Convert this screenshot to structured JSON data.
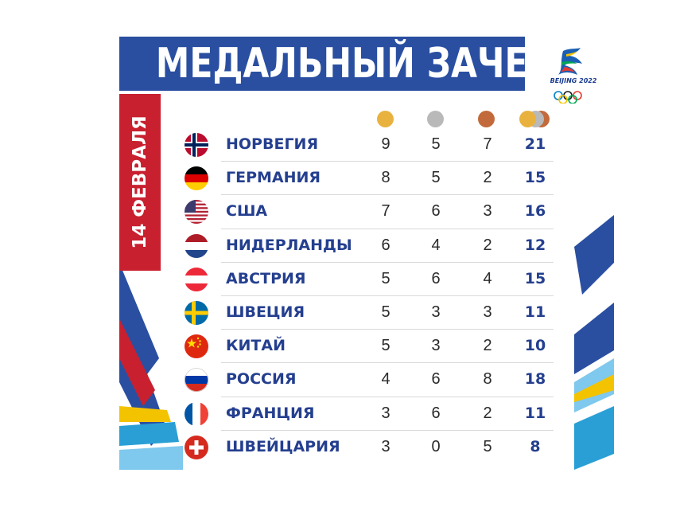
{
  "title": "МЕДАЛЬНЫЙ ЗАЧЕТ",
  "date": "14 ФЕВРАЛЯ",
  "logo": {
    "text": "BEIJING 2022",
    "colors": [
      "#1a5fb4",
      "#e83a2f",
      "#f4c300",
      "#00a651",
      "#0081c8"
    ]
  },
  "colors": {
    "gold": "#e9b23f",
    "silver": "#b9b9b9",
    "bronze": "#c26a3b",
    "title_bg": "#2a4fa1",
    "date_bg": "#c8202f",
    "text_blue": "#243f8f"
  },
  "medal_icons": [
    "gold-medal-icon",
    "silver-medal-icon",
    "bronze-medal-icon",
    "total-medals-icon"
  ],
  "rows": [
    {
      "flag": "norway-flag-icon",
      "country": "НОРВЕГИЯ",
      "gold": "9",
      "silver": "5",
      "bronze": "7",
      "total": "21"
    },
    {
      "flag": "germany-flag-icon",
      "country": "ГЕРМАНИЯ",
      "gold": "8",
      "silver": "5",
      "bronze": "2",
      "total": "15"
    },
    {
      "flag": "usa-flag-icon",
      "country": "США",
      "gold": "7",
      "silver": "6",
      "bronze": "3",
      "total": "16"
    },
    {
      "flag": "netherlands-flag-icon",
      "country": "НИДЕРЛАНДЫ",
      "gold": "6",
      "silver": "4",
      "bronze": "2",
      "total": "12"
    },
    {
      "flag": "austria-flag-icon",
      "country": "АВСТРИЯ",
      "gold": "5",
      "silver": "6",
      "bronze": "4",
      "total": "15"
    },
    {
      "flag": "sweden-flag-icon",
      "country": "ШВЕЦИЯ",
      "gold": "5",
      "silver": "3",
      "bronze": "3",
      "total": "11"
    },
    {
      "flag": "china-flag-icon",
      "country": "КИТАЙ",
      "gold": "5",
      "silver": "3",
      "bronze": "2",
      "total": "10"
    },
    {
      "flag": "russia-flag-icon",
      "country": "РОССИЯ",
      "gold": "4",
      "silver": "6",
      "bronze": "8",
      "total": "18"
    },
    {
      "flag": "france-flag-icon",
      "country": "ФРАНЦИЯ",
      "gold": "3",
      "silver": "6",
      "bronze": "2",
      "total": "11"
    },
    {
      "flag": "switzerland-flag-icon",
      "country": "ШВЕЙЦАРИЯ",
      "gold": "3",
      "silver": "0",
      "bronze": "5",
      "total": "8"
    }
  ]
}
